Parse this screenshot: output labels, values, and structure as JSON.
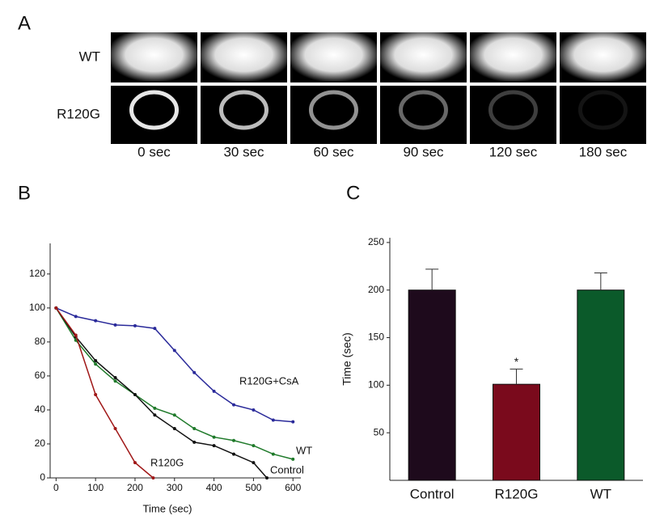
{
  "panels": {
    "a": "A",
    "b": "B",
    "c": "C"
  },
  "panel_a": {
    "rows": [
      "WT",
      "R120G"
    ],
    "times": [
      "0 sec",
      "30 sec",
      "60 sec",
      "90 sec",
      "120 sec",
      "180 sec"
    ]
  },
  "chart_data": [
    {
      "type": "line",
      "xlabel": "Time (sec)",
      "xlim": [
        -15,
        620
      ],
      "ylim": [
        0,
        138
      ],
      "xticks": [
        0,
        100,
        200,
        300,
        400,
        500,
        600
      ],
      "yticks": [
        0,
        20,
        40,
        60,
        80,
        100,
        120
      ],
      "series": [
        {
          "name": "R120G+CsA",
          "color": "#2a2a9a",
          "x": [
            0,
            50,
            100,
            150,
            200,
            250,
            300,
            350,
            400,
            450,
            500,
            550,
            600
          ],
          "values": [
            100,
            95,
            92.5,
            90,
            89.5,
            88,
            75,
            62,
            51,
            43,
            40,
            34,
            33
          ]
        },
        {
          "name": "WT",
          "color": "#1f7a2a",
          "x": [
            0,
            50,
            100,
            150,
            200,
            250,
            300,
            350,
            400,
            450,
            500,
            550,
            600
          ],
          "values": [
            100,
            81,
            67,
            57,
            49,
            41,
            37,
            29,
            24,
            22,
            19,
            14,
            11
          ]
        },
        {
          "name": "Control",
          "color": "#111111",
          "x": [
            0,
            50,
            100,
            150,
            200,
            250,
            300,
            350,
            400,
            450,
            500,
            534
          ],
          "values": [
            100,
            83,
            69,
            59,
            49,
            37,
            29,
            21,
            19,
            14,
            9,
            0
          ]
        },
        {
          "name": "R120G",
          "color": "#a01818",
          "x": [
            0,
            50,
            100,
            150,
            200,
            246
          ],
          "values": [
            100,
            84,
            49,
            29,
            9,
            0
          ]
        }
      ]
    },
    {
      "type": "bar",
      "ylabel": "Time (sec)",
      "ylim": [
        0,
        255
      ],
      "yticks": [
        50,
        100,
        150,
        200,
        250
      ],
      "categories": [
        "Control",
        "R120G",
        "WT"
      ],
      "values": [
        200,
        101,
        200
      ],
      "errors": [
        22,
        16,
        18
      ],
      "colors": [
        "#1e0a1c",
        "#7a0a1c",
        "#0b5a2a"
      ],
      "annotation": "*"
    }
  ]
}
